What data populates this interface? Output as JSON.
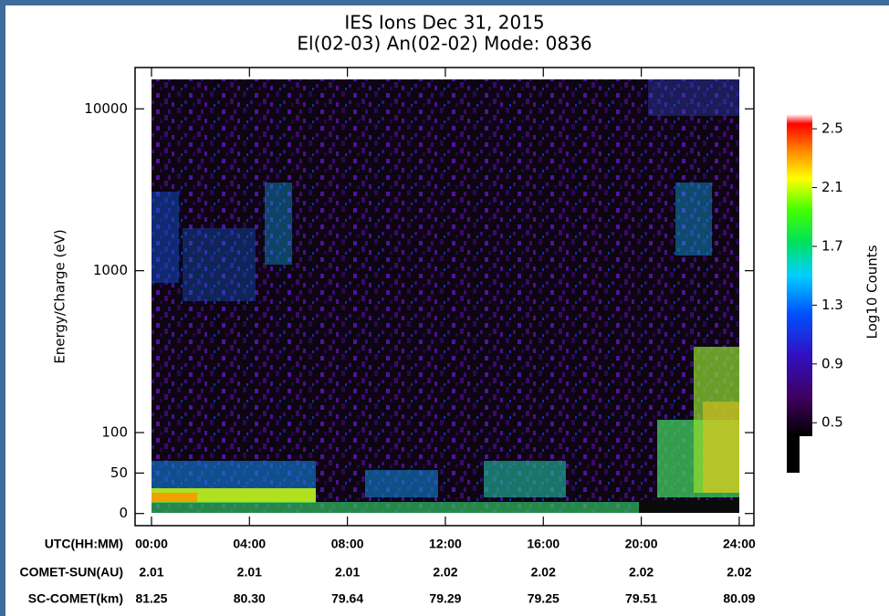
{
  "chart_data": {
    "type": "spectrogram",
    "title": [
      "IES Ions Dec 31, 2015",
      "El(02-03) An(02-02) Mode: 0836"
    ],
    "y_label": "Energy/Charge (eV)",
    "yscale": "symlog",
    "linthresh": 100,
    "linscale": 0.5,
    "ylim": [
      -15,
      18000
    ],
    "yticks": [
      0,
      50,
      100,
      1000,
      10000
    ],
    "x_label": "UTC(HH:MM)",
    "xlim": [
      -0.67,
      24.6
    ],
    "xticks": [
      {
        "value": 0,
        "label": "00:00"
      },
      {
        "value": 4,
        "label": "04:00"
      },
      {
        "value": 8,
        "label": "08:00"
      },
      {
        "value": 12,
        "label": "12:00"
      },
      {
        "value": 16,
        "label": "16:00"
      },
      {
        "value": 20,
        "label": "20:00"
      },
      {
        "value": 24,
        "label": "24:00"
      }
    ],
    "colorbar": {
      "label": "Log10 Counts",
      "clim": [
        0.16,
        2.6
      ],
      "ticks": [
        0.5,
        0.9,
        1.3,
        1.7,
        2.1,
        2.5
      ]
    },
    "ephemeris": [
      {
        "label": "COMET-SUN(AU)",
        "values": [
          "2.01",
          "2.01",
          "2.01",
          "2.02",
          "2.02",
          "2.02",
          "2.02"
        ]
      },
      {
        "label": "SC-COMET(km)",
        "values": [
          "81.25",
          "80.30",
          "79.64",
          "79.29",
          "79.25",
          "79.51",
          "80.09"
        ]
      }
    ]
  }
}
